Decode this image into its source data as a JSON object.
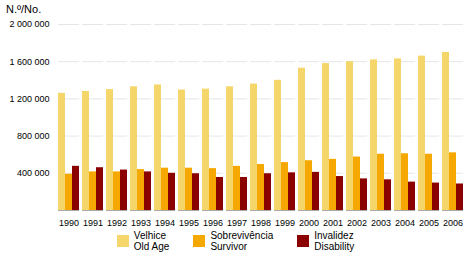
{
  "chart_data": {
    "type": "bar",
    "ylabel": "N.º/No.",
    "categories": [
      1990,
      1991,
      1992,
      1993,
      1994,
      1995,
      1996,
      1997,
      1998,
      1999,
      2000,
      2001,
      2002,
      2003,
      2004,
      2005,
      2006
    ],
    "series": [
      {
        "name": "Velhice\nOld Age",
        "color": "#F5D66A",
        "values": [
          1260000,
          1280000,
          1300000,
          1330000,
          1350000,
          1295000,
          1305000,
          1330000,
          1360000,
          1400000,
          1530000,
          1580000,
          1600000,
          1620000,
          1630000,
          1660000,
          1700000
        ]
      },
      {
        "name": "Sobrevivência\nSurvivor",
        "color": "#F5A800",
        "values": [
          390000,
          415000,
          415000,
          440000,
          455000,
          455000,
          450000,
          475000,
          495000,
          515000,
          535000,
          550000,
          575000,
          605000,
          610000,
          605000,
          620000
        ]
      },
      {
        "name": "Invalidez\nDisability",
        "color": "#8B0000",
        "values": [
          475000,
          460000,
          435000,
          415000,
          400000,
          395000,
          355000,
          355000,
          395000,
          405000,
          410000,
          365000,
          340000,
          330000,
          305000,
          295000,
          285000
        ]
      }
    ],
    "ylim": [
      0,
      2000000
    ],
    "yticks": [
      {
        "value": 400000,
        "label": "400 000"
      },
      {
        "value": 800000,
        "label": "800 000"
      },
      {
        "value": 1200000,
        "label": "1 200 000"
      },
      {
        "value": 1600000,
        "label": "1 600 000"
      },
      {
        "value": 2000000,
        "label": "2 000 000"
      }
    ],
    "grid": true,
    "legend": "bottom"
  }
}
